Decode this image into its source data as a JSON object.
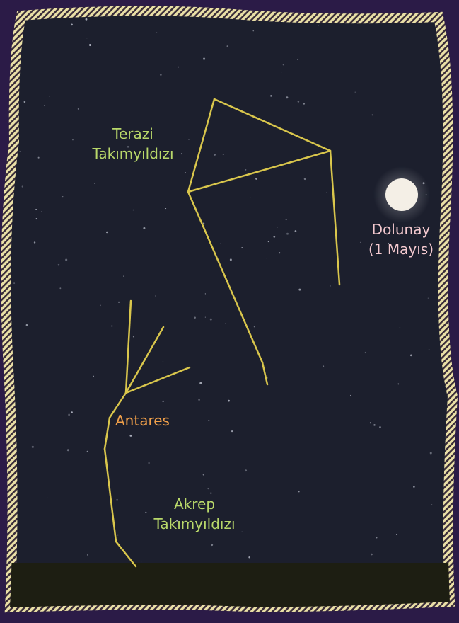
{
  "labels": {
    "libra": [
      "Terazi",
      "Takımyıldızı"
    ],
    "moon": [
      "Dolunay",
      "(1 Mayıs)"
    ],
    "antares": "Antares",
    "scorpius": [
      "Akrep",
      "Takımyıldızı"
    ]
  }
}
